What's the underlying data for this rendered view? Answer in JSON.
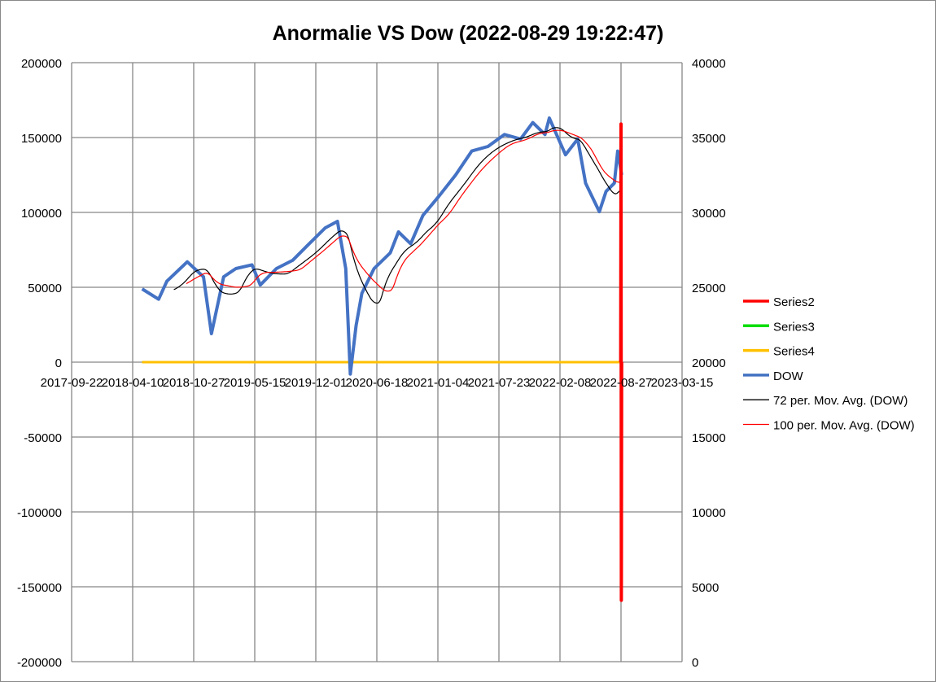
{
  "chart_data": {
    "type": "line",
    "title": "Anormalie VS Dow (2022-08-29  19:22:47)",
    "x_axis": {
      "type": "date",
      "range": [
        "2017-09-22",
        "2023-03-15"
      ],
      "tick_labels": [
        "2017-09-22",
        "2018-04-10",
        "2018-10-27",
        "2019-05-15",
        "2019-12-01",
        "2020-06-18",
        "2021-01-04",
        "2021-07-23",
        "2022-02-08",
        "2022-08-27",
        "2023-03-15"
      ],
      "grid": true
    },
    "y_axis_left": {
      "range": [
        -200000,
        200000
      ],
      "tick_labels": [
        "200000",
        "150000",
        "100000",
        "50000",
        "0",
        "-50000",
        "-100000",
        "-150000",
        "-200000"
      ],
      "ticks": [
        200000,
        150000,
        100000,
        50000,
        0,
        -50000,
        -100000,
        -150000,
        -200000
      ],
      "grid": false
    },
    "y_axis_right": {
      "range": [
        0,
        40000
      ],
      "tick_labels": [
        "40000",
        "35000",
        "30000",
        "25000",
        "20000",
        "15000",
        "10000",
        "5000",
        "0"
      ],
      "ticks": [
        40000,
        35000,
        30000,
        25000,
        20000,
        15000,
        10000,
        5000,
        0
      ],
      "grid": true
    },
    "legend": {
      "placement": "right"
    },
    "series": [
      {
        "name": "Series2",
        "axis": "left",
        "color": "#ff0000",
        "points": [
          [
            "2022-08-26",
            0
          ],
          [
            "2022-08-27",
            159000
          ],
          [
            "2022-08-28",
            -159000
          ],
          [
            "2022-08-29",
            0
          ]
        ]
      },
      {
        "name": "Series3",
        "axis": "left",
        "color": "#00dd00",
        "points": [
          [
            "2018-05-11",
            0
          ],
          [
            "2022-08-29",
            0
          ]
        ]
      },
      {
        "name": "Series4",
        "axis": "left",
        "color": "#ffc000",
        "points": [
          [
            "2018-05-11",
            0
          ],
          [
            "2022-08-29",
            0
          ]
        ]
      },
      {
        "name": "DOW",
        "axis": "right",
        "color": "#4472c4",
        "points": [
          [
            "2018-05-11",
            24890
          ],
          [
            "2018-07-04",
            24200
          ],
          [
            "2018-07-31",
            25400
          ],
          [
            "2018-10-06",
            26700
          ],
          [
            "2018-11-28",
            25700
          ],
          [
            "2018-12-24",
            21900
          ],
          [
            "2019-02-02",
            25700
          ],
          [
            "2019-03-14",
            26250
          ],
          [
            "2019-05-06",
            26500
          ],
          [
            "2019-06-02",
            25150
          ],
          [
            "2019-07-25",
            26250
          ],
          [
            "2019-09-16",
            26800
          ],
          [
            "2019-11-09",
            27900
          ],
          [
            "2020-01-01",
            28970
          ],
          [
            "2020-02-10",
            29400
          ],
          [
            "2020-03-08",
            26250
          ],
          [
            "2020-03-23",
            19200
          ],
          [
            "2020-04-11",
            22440
          ],
          [
            "2020-04-30",
            24600
          ],
          [
            "2020-06-09",
            26250
          ],
          [
            "2020-08-01",
            27300
          ],
          [
            "2020-08-28",
            28700
          ],
          [
            "2020-10-07",
            27900
          ],
          [
            "2020-11-16",
            29800
          ],
          [
            "2021-01-08",
            31100
          ],
          [
            "2021-03-03",
            32500
          ],
          [
            "2021-04-25",
            34100
          ],
          [
            "2021-06-17",
            34400
          ],
          [
            "2021-08-10",
            35200
          ],
          [
            "2021-10-02",
            34900
          ],
          [
            "2021-11-11",
            36000
          ],
          [
            "2021-12-21",
            35200
          ],
          [
            "2022-01-04",
            36300
          ],
          [
            "2022-02-26",
            33850
          ],
          [
            "2022-04-07",
            34900
          ],
          [
            "2022-05-03",
            31950
          ],
          [
            "2022-06-17",
            30050
          ],
          [
            "2022-07-09",
            31400
          ],
          [
            "2022-08-05",
            31950
          ],
          [
            "2022-08-16",
            34100
          ],
          [
            "2022-08-29",
            32500
          ]
        ]
      },
      {
        "name": "72 per. Mov. Avg. (DOW)",
        "axis": "right",
        "color": "#000000",
        "trendline_of": "DOW",
        "period": 72
      },
      {
        "name": "100 per. Mov. Avg. (DOW)",
        "axis": "right",
        "color": "#ff0000",
        "trendline_of": "DOW",
        "period": 100
      }
    ]
  }
}
